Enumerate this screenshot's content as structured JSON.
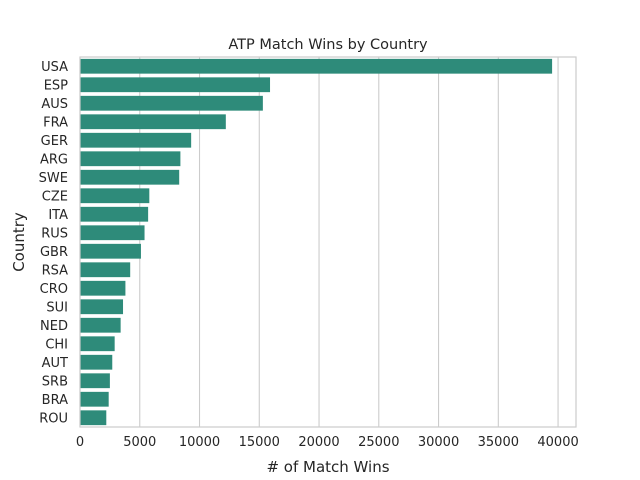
{
  "chart_data": {
    "type": "bar",
    "orientation": "horizontal",
    "title": "ATP Match Wins by Country",
    "xlabel": "# of Match Wins",
    "ylabel": "Country",
    "categories": [
      "USA",
      "ESP",
      "AUS",
      "FRA",
      "GER",
      "ARG",
      "SWE",
      "CZE",
      "ITA",
      "RUS",
      "GBR",
      "RSA",
      "CRO",
      "SUI",
      "NED",
      "CHI",
      "AUT",
      "SRB",
      "BRA",
      "ROU"
    ],
    "values": [
      39500,
      15900,
      15300,
      12200,
      9300,
      8400,
      8300,
      5800,
      5700,
      5400,
      5100,
      4200,
      3800,
      3600,
      3400,
      2900,
      2700,
      2500,
      2400,
      2200
    ],
    "xlim": [
      0,
      41500
    ],
    "xticks": [
      "0",
      "5000",
      "10000",
      "15000",
      "20000",
      "25000",
      "30000",
      "35000",
      "40000"
    ],
    "grid": "vertical",
    "bar_color": "#2e8b7a",
    "legend": "none"
  }
}
